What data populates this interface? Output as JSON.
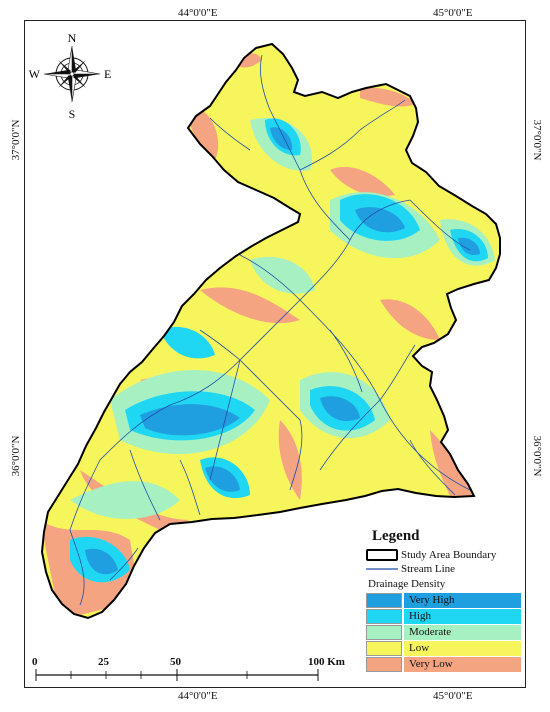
{
  "map": {
    "lon_labels": [
      "44°0'0\"E",
      "45°0'0\"E"
    ],
    "lat_labels": [
      "37°0'0\"N",
      "36°0'0\"N"
    ],
    "compass": {
      "n": "N",
      "s": "S",
      "e": "E",
      "w": "W"
    },
    "colors": {
      "very_high": "#1f9fe0",
      "high": "#1fd7f3",
      "moderate": "#a6f0c2",
      "low": "#f7f55c",
      "very_low": "#f5a482",
      "stream": "#1f4fa8",
      "boundary": "#000000"
    }
  },
  "legend": {
    "title": "Legend",
    "boundary_label": "Study Area Boundary",
    "stream_label": "Stream Line",
    "drainage_heading": "Drainage Density",
    "classes": [
      {
        "label": "Very High",
        "color": "#1f9fe0"
      },
      {
        "label": "High",
        "color": "#1fd7f3"
      },
      {
        "label": "Moderate",
        "color": "#a6f0c2"
      },
      {
        "label": "Low",
        "color": "#f7f55c"
      },
      {
        "label": "Very Low",
        "color": "#f5a482"
      }
    ]
  },
  "scale_bar": {
    "ticks": [
      "0",
      "25",
      "50",
      "100 Km"
    ]
  }
}
